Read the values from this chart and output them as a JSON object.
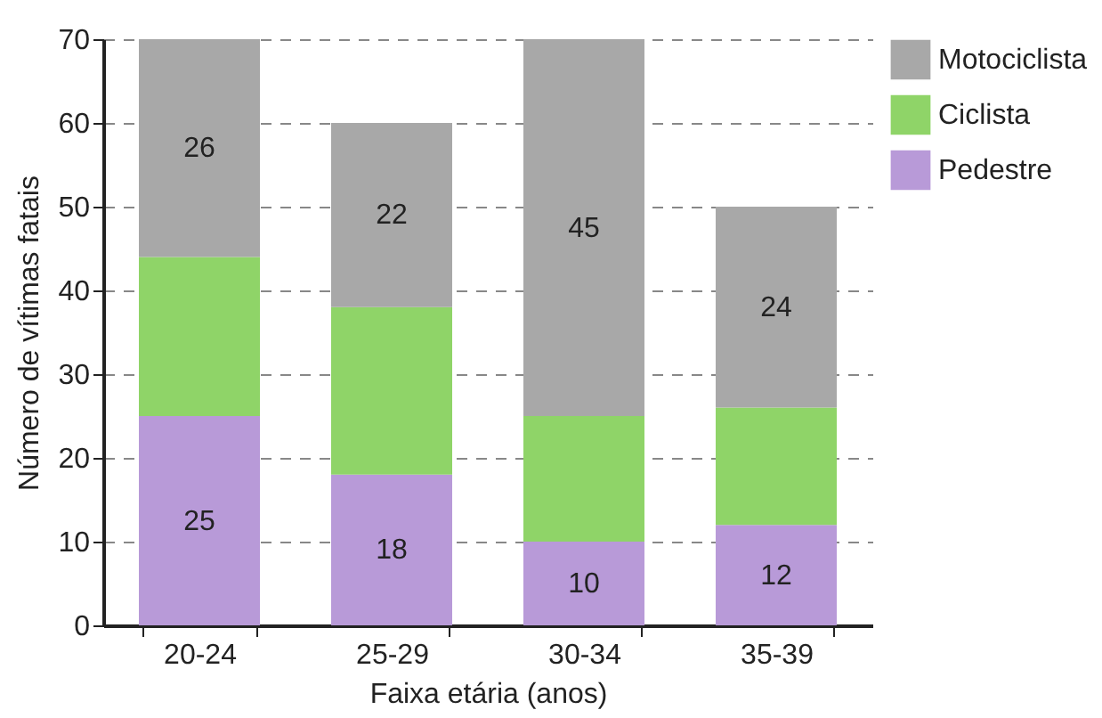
{
  "chart_data": {
    "type": "bar",
    "stacked": true,
    "xlabel": "Faixa etária (anos)",
    "ylabel": "Número de vítimas fatais",
    "categories": [
      "20-24",
      "25-29",
      "30-34",
      "35-39"
    ],
    "series": [
      {
        "name": "Pedestre",
        "color": "#b89ad8",
        "values": [
          25,
          18,
          10,
          12
        ],
        "value_labels": [
          "25",
          "18",
          "10",
          "12"
        ]
      },
      {
        "name": "Ciclista",
        "color": "#8fd468",
        "values": [
          19,
          20,
          15,
          14
        ],
        "value_labels": [
          null,
          null,
          null,
          null
        ]
      },
      {
        "name": "Motociclista",
        "color": "#a8a8a8",
        "values": [
          26,
          22,
          45,
          24
        ],
        "value_labels": [
          "26",
          "22",
          "45",
          "24"
        ]
      }
    ],
    "ylim": [
      0,
      70
    ],
    "yticks": [
      0,
      10,
      20,
      30,
      40,
      50,
      60,
      70
    ],
    "grid": "y",
    "legend": "right"
  }
}
